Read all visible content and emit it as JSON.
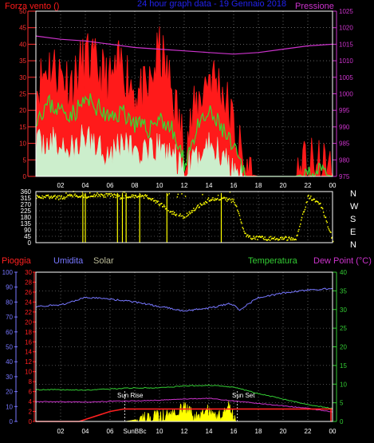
{
  "colors": {
    "background": "#000000",
    "axis": "#ffffff",
    "wind_max": "#ff1a1a",
    "wind_avg": "#33dd33",
    "wind_min": "#cceecc",
    "pressure": "#cc33cc",
    "title": "#2222ee",
    "direction": "#ffff00",
    "rain": "#ff2020",
    "humidity": "#7777ff",
    "solar": "#ffff00",
    "temperature": "#33cc33",
    "dewpoint": "#cc33cc"
  },
  "chart_data": [
    {
      "id": "wind-pressure",
      "type": "line",
      "title": "24 hour graph data - 19 Gennaio 2018",
      "left_label": "Forza vento ()",
      "right_label": "Pressione",
      "x_tick_labels": [
        "02",
        "04",
        "06",
        "08",
        "10",
        "12",
        "14",
        "16",
        "18",
        "20",
        "22",
        "00"
      ],
      "y_left_ticks": [
        0,
        5,
        10,
        15,
        20,
        25,
        30,
        35,
        40,
        45,
        50
      ],
      "y_left_lim": [
        0,
        50
      ],
      "y_right_ticks": [
        975,
        980,
        985,
        990,
        995,
        1000,
        1005,
        1010,
        1015,
        1020,
        1025
      ],
      "y_right_lim": [
        975,
        1025
      ],
      "series": [
        {
          "key": "wind_max",
          "x": [
            0,
            1,
            2,
            3,
            4,
            5,
            6,
            7,
            8,
            9,
            10,
            11,
            12,
            13,
            14,
            15,
            16,
            17,
            18,
            19,
            20,
            21,
            22,
            23,
            24
          ],
          "values": [
            26,
            34,
            31,
            28,
            36,
            32,
            28,
            34,
            26,
            24,
            38,
            26,
            9,
            21,
            31,
            27,
            15,
            1,
            0,
            0,
            0,
            0,
            3,
            2,
            1
          ]
        },
        {
          "key": "wind_avg",
          "x": [
            0,
            1,
            2,
            3,
            4,
            5,
            6,
            7,
            8,
            9,
            10,
            11,
            12,
            13,
            14,
            15,
            16,
            17,
            18,
            19,
            20,
            21,
            22,
            23,
            24
          ],
          "values": [
            18,
            22,
            20,
            19,
            23,
            21,
            17,
            20,
            16,
            14,
            18,
            14,
            4,
            14,
            19,
            15,
            8,
            0,
            0,
            0,
            0,
            0,
            1,
            1,
            0
          ]
        },
        {
          "key": "wind_min",
          "x": [
            0,
            1,
            2,
            3,
            4,
            5,
            6,
            7,
            8,
            9,
            10,
            11,
            12,
            13,
            14,
            15,
            16,
            17,
            18,
            19,
            20,
            21,
            22,
            23,
            24
          ],
          "values": [
            9,
            11,
            9,
            8,
            12,
            10,
            7,
            11,
            8,
            6,
            9,
            7,
            1,
            6,
            10,
            7,
            3,
            0,
            0,
            0,
            0,
            0,
            0,
            0,
            0
          ]
        },
        {
          "key": "pressure",
          "x": [
            0,
            2,
            4,
            6,
            8,
            10,
            12,
            14,
            16,
            18,
            20,
            22,
            24
          ],
          "values": [
            1017.5,
            1016.5,
            1016,
            1015,
            1014,
            1013.5,
            1013,
            1012.5,
            1012,
            1012.5,
            1013.5,
            1014.5,
            1015
          ]
        }
      ]
    },
    {
      "id": "wind-direction",
      "type": "scatter",
      "x_tick_labels": [
        "02",
        "04",
        "06",
        "08",
        "10",
        "12",
        "14",
        "16",
        "18",
        "20",
        "22",
        "00"
      ],
      "y_left_ticks": [
        0,
        45,
        90,
        135,
        180,
        225,
        270,
        315,
        360
      ],
      "y_left_lim": [
        0,
        360
      ],
      "compass_labels": [
        "N",
        "W",
        "S",
        "E",
        "N"
      ],
      "series": [
        {
          "key": "direction",
          "x": [
            0,
            1,
            2,
            3,
            4,
            5,
            6,
            7,
            8,
            9,
            10,
            11,
            12,
            13,
            14,
            15,
            16,
            17,
            18,
            19,
            20,
            21,
            22,
            23,
            24
          ],
          "values": [
            325,
            320,
            315,
            330,
            320,
            330,
            335,
            315,
            330,
            325,
            270,
            210,
            180,
            245,
            305,
            310,
            290,
            40,
            30,
            28,
            30,
            25,
            325,
            270,
            10
          ]
        }
      ]
    },
    {
      "id": "rain-hum-temp",
      "type": "line",
      "headers": {
        "rain": "Pioggia",
        "humidity": "Umidita",
        "solar": "Solar",
        "temperature": "Temperatura",
        "dewpoint": "Dew Point (°C)"
      },
      "x_tick_labels": [
        "02",
        "04",
        "06",
        "SunBBc",
        "10",
        "12",
        "14",
        "16",
        "18",
        "20",
        "22",
        "00"
      ],
      "annotations": {
        "sun_rise": "Sun Rise",
        "sun_set": "Sun Set"
      },
      "y_humidity_ticks": [
        0,
        10,
        20,
        30,
        40,
        50,
        60,
        70,
        80,
        90,
        100
      ],
      "y_rain_ticks": [
        0,
        2,
        4,
        6,
        8,
        10,
        12,
        14,
        16,
        18,
        20,
        22,
        24,
        26,
        28,
        30
      ],
      "y_temp_ticks": [
        0,
        5,
        10,
        15,
        20,
        25,
        30,
        35,
        40
      ],
      "y_temp_lim": [
        0,
        40
      ],
      "series": [
        {
          "key": "humidity",
          "x": [
            0,
            2,
            4,
            6,
            8,
            10,
            12,
            14,
            15.8,
            16.5,
            18,
            20,
            22,
            24
          ],
          "values": [
            77,
            78,
            83,
            82,
            80,
            77,
            74,
            76,
            79,
            75,
            83,
            86,
            88,
            89
          ]
        },
        {
          "key": "temperature",
          "x": [
            0,
            2,
            4,
            6,
            8,
            10,
            12,
            14,
            16,
            18,
            20,
            22,
            24
          ],
          "values": [
            8.5,
            8.5,
            8.4,
            8.7,
            9,
            9,
            9.5,
            9.7,
            9.2,
            7.5,
            6,
            4.5,
            3.5
          ]
        },
        {
          "key": "dewpoint",
          "x": [
            0,
            2,
            4,
            6,
            8,
            10,
            12,
            14,
            16,
            18,
            20,
            22,
            24
          ],
          "values": [
            5.3,
            5.3,
            5.2,
            5.4,
            5.5,
            5.7,
            6,
            6.2,
            5.5,
            4.8,
            4.2,
            3.5,
            2.5
          ]
        },
        {
          "key": "rain",
          "x": [
            0,
            3.5,
            6,
            7.1,
            24
          ],
          "values": [
            0,
            0,
            2,
            2.5,
            2.5
          ]
        },
        {
          "key": "solar",
          "x": [
            7.2,
            9,
            11,
            12,
            12.6,
            13,
            14,
            15,
            15.5,
            16.2,
            24
          ],
          "values": [
            0,
            1,
            2,
            4,
            2,
            1,
            3,
            1,
            5,
            0,
            0
          ]
        }
      ]
    }
  ]
}
